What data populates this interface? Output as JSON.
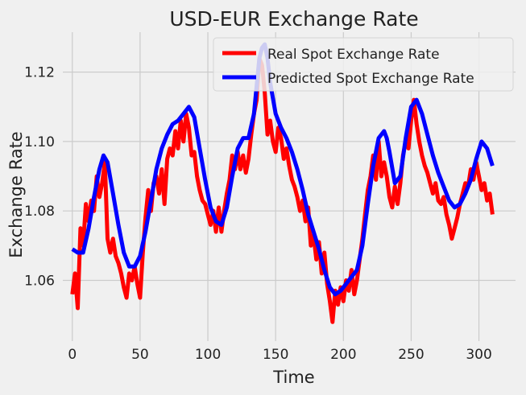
{
  "chart_data": {
    "type": "line",
    "title": "USD-EUR Exchange Rate",
    "xlabel": "Time",
    "ylabel": "Exchange Rate",
    "xlim": [
      -7,
      327
    ],
    "ylim": [
      1.0425,
      1.1315
    ],
    "xticks": [
      0,
      50,
      100,
      150,
      200,
      250,
      300
    ],
    "xtick_labels": [
      "0",
      "50",
      "100",
      "150",
      "200",
      "250",
      "300"
    ],
    "yticks": [
      1.06,
      1.08,
      1.1,
      1.12
    ],
    "ytick_labels": [
      "1.06",
      "1.08",
      "1.10",
      "1.12"
    ],
    "grid": true,
    "legend": {
      "placement": "top-right"
    },
    "series": [
      {
        "name": "Real Spot Exchange Rate",
        "color": "#ff0000",
        "x": [
          0,
          2,
          4,
          6,
          8,
          10,
          12,
          14,
          16,
          18,
          20,
          22,
          24,
          26,
          28,
          30,
          32,
          34,
          36,
          38,
          40,
          42,
          44,
          46,
          48,
          50,
          52,
          54,
          56,
          58,
          60,
          62,
          64,
          66,
          68,
          70,
          72,
          74,
          76,
          78,
          80,
          82,
          84,
          86,
          88,
          90,
          92,
          94,
          96,
          98,
          100,
          102,
          104,
          106,
          108,
          110,
          112,
          114,
          116,
          118,
          120,
          122,
          124,
          126,
          128,
          130,
          132,
          134,
          136,
          138,
          140,
          142,
          144,
          146,
          148,
          150,
          152,
          154,
          156,
          158,
          160,
          162,
          164,
          166,
          168,
          170,
          172,
          174,
          176,
          178,
          180,
          182,
          184,
          186,
          188,
          190,
          192,
          194,
          196,
          198,
          200,
          202,
          204,
          206,
          208,
          210,
          212,
          214,
          216,
          218,
          220,
          222,
          224,
          226,
          228,
          230,
          232,
          234,
          236,
          238,
          240,
          242,
          244,
          246,
          248,
          250,
          252,
          254,
          256,
          258,
          260,
          262,
          264,
          266,
          268,
          270,
          272,
          274,
          276,
          278,
          280,
          282,
          284,
          286,
          288,
          290,
          292,
          294,
          296,
          298,
          300,
          302,
          304,
          306,
          308,
          310
        ],
        "y": [
          1.056,
          1.062,
          1.052,
          1.075,
          1.07,
          1.082,
          1.077,
          1.083,
          1.08,
          1.09,
          1.084,
          1.088,
          1.094,
          1.072,
          1.068,
          1.072,
          1.067,
          1.065,
          1.062,
          1.058,
          1.055,
          1.062,
          1.06,
          1.064,
          1.059,
          1.055,
          1.068,
          1.078,
          1.086,
          1.08,
          1.088,
          1.09,
          1.085,
          1.092,
          1.082,
          1.095,
          1.098,
          1.096,
          1.103,
          1.098,
          1.106,
          1.1,
          1.108,
          1.104,
          1.096,
          1.097,
          1.09,
          1.086,
          1.083,
          1.082,
          1.079,
          1.076,
          1.08,
          1.074,
          1.081,
          1.074,
          1.08,
          1.085,
          1.089,
          1.096,
          1.092,
          1.097,
          1.092,
          1.096,
          1.091,
          1.095,
          1.102,
          1.108,
          1.112,
          1.124,
          1.122,
          1.114,
          1.102,
          1.106,
          1.1,
          1.097,
          1.104,
          1.101,
          1.095,
          1.098,
          1.093,
          1.089,
          1.087,
          1.084,
          1.08,
          1.083,
          1.077,
          1.081,
          1.07,
          1.073,
          1.066,
          1.071,
          1.062,
          1.068,
          1.059,
          1.054,
          1.048,
          1.057,
          1.053,
          1.058,
          1.054,
          1.06,
          1.057,
          1.063,
          1.056,
          1.06,
          1.066,
          1.072,
          1.079,
          1.086,
          1.09,
          1.096,
          1.089,
          1.1,
          1.09,
          1.094,
          1.09,
          1.084,
          1.081,
          1.087,
          1.082,
          1.088,
          1.096,
          1.1,
          1.098,
          1.106,
          1.112,
          1.105,
          1.1,
          1.096,
          1.093,
          1.091,
          1.088,
          1.085,
          1.088,
          1.083,
          1.082,
          1.084,
          1.079,
          1.076,
          1.072,
          1.075,
          1.078,
          1.082,
          1.085,
          1.088,
          1.087,
          1.092,
          1.089,
          1.094,
          1.09,
          1.086,
          1.088,
          1.083,
          1.085,
          1.079
        ]
      },
      {
        "name": "Predicted Spot Exchange Rate",
        "color": "#0000ff",
        "x": [
          0,
          4,
          8,
          12,
          16,
          20,
          23,
          26,
          30,
          34,
          38,
          42,
          46,
          50,
          54,
          58,
          62,
          66,
          70,
          74,
          78,
          82,
          86,
          90,
          94,
          98,
          102,
          106,
          110,
          114,
          118,
          122,
          126,
          130,
          134,
          136,
          138,
          140,
          142,
          144,
          146,
          150,
          154,
          158,
          162,
          166,
          170,
          174,
          178,
          182,
          186,
          190,
          194,
          198,
          202,
          206,
          210,
          214,
          218,
          222,
          226,
          230,
          232,
          234,
          238,
          242,
          246,
          250,
          254,
          258,
          262,
          266,
          270,
          274,
          278,
          282,
          286,
          290,
          294,
          298,
          302,
          306,
          310
        ],
        "y": [
          1.069,
          1.068,
          1.068,
          1.075,
          1.084,
          1.092,
          1.096,
          1.094,
          1.085,
          1.076,
          1.068,
          1.064,
          1.064,
          1.067,
          1.074,
          1.083,
          1.092,
          1.098,
          1.102,
          1.105,
          1.106,
          1.108,
          1.11,
          1.107,
          1.098,
          1.089,
          1.081,
          1.077,
          1.076,
          1.081,
          1.09,
          1.098,
          1.101,
          1.101,
          1.108,
          1.116,
          1.124,
          1.127,
          1.128,
          1.124,
          1.117,
          1.108,
          1.104,
          1.101,
          1.097,
          1.092,
          1.086,
          1.079,
          1.074,
          1.069,
          1.063,
          1.058,
          1.056,
          1.057,
          1.059,
          1.061,
          1.063,
          1.07,
          1.082,
          1.093,
          1.101,
          1.103,
          1.101,
          1.097,
          1.088,
          1.09,
          1.101,
          1.11,
          1.112,
          1.108,
          1.102,
          1.096,
          1.091,
          1.087,
          1.083,
          1.081,
          1.082,
          1.085,
          1.089,
          1.095,
          1.1,
          1.098,
          1.093
        ]
      }
    ]
  }
}
